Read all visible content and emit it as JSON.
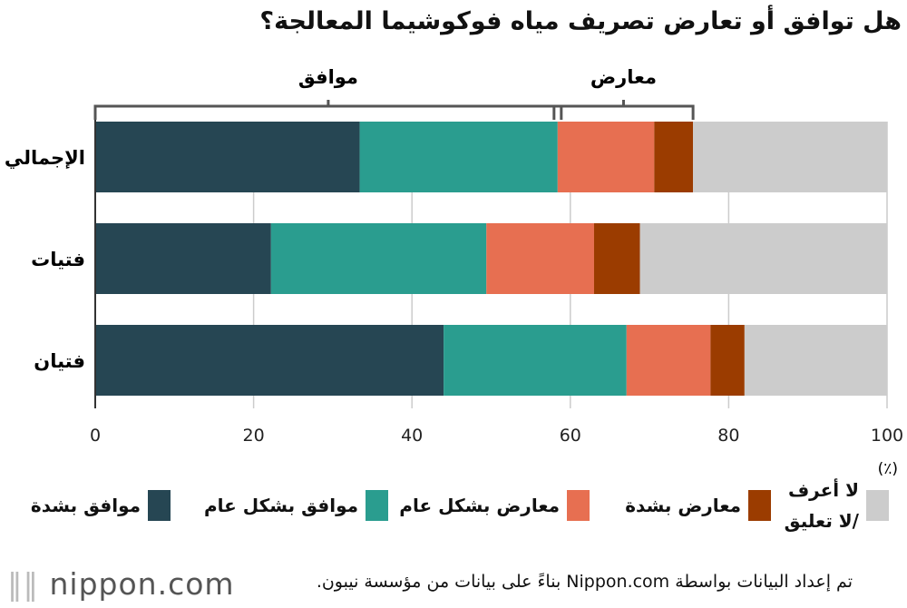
{
  "title": "هل توافق أو تعارض تصريف مياه فوكوشيما المعالجة؟",
  "chart_data": {
    "type": "bar",
    "stacked": true,
    "orientation": "horizontal",
    "categories": [
      "الإجمالي",
      "فتيات",
      "فتيان"
    ],
    "series": [
      {
        "name": "موافق بشدة",
        "color": "#264653",
        "values": [
          33.4,
          22.2,
          44.0
        ]
      },
      {
        "name": "موافق بشكل عام",
        "color": "#2a9d8f",
        "values": [
          25.0,
          27.2,
          23.1
        ]
      },
      {
        "name": "معارض بشدة",
        "color": "#e76f51",
        "values": [
          12.2,
          13.6,
          10.6
        ]
      },
      {
        "name": "معارض بشكل عام",
        "color": "#9b3c00",
        "values": [
          4.9,
          5.8,
          4.3
        ]
      },
      {
        "name": "لا أعرف /لا تعليق",
        "color": "#cccccc",
        "values": [
          24.5,
          31.2,
          18.0
        ]
      }
    ],
    "xlim": [
      0,
      100
    ],
    "xticks": [
      "0",
      "20",
      "40",
      "60",
      "80",
      "100"
    ],
    "unit": "(٪)",
    "grid": true,
    "brackets": [
      {
        "label": "موافق",
        "from": 0,
        "to": 58.4
      },
      {
        "label": "معارض",
        "from": 58.4,
        "to": 75.5
      }
    ],
    "legend_position": "bottom"
  },
  "legend_labels": [
    "موافق بشدة",
    "موافق بشكل عام",
    "معارض بشدة",
    "معارض بشكل عام",
    "لا أعرف /لا تعليق"
  ],
  "footer": "تم إعداد البيانات بواسطة Nippon.com بناءً على بيانات من مؤسسة نيبون.",
  "logo": "nippon.com"
}
